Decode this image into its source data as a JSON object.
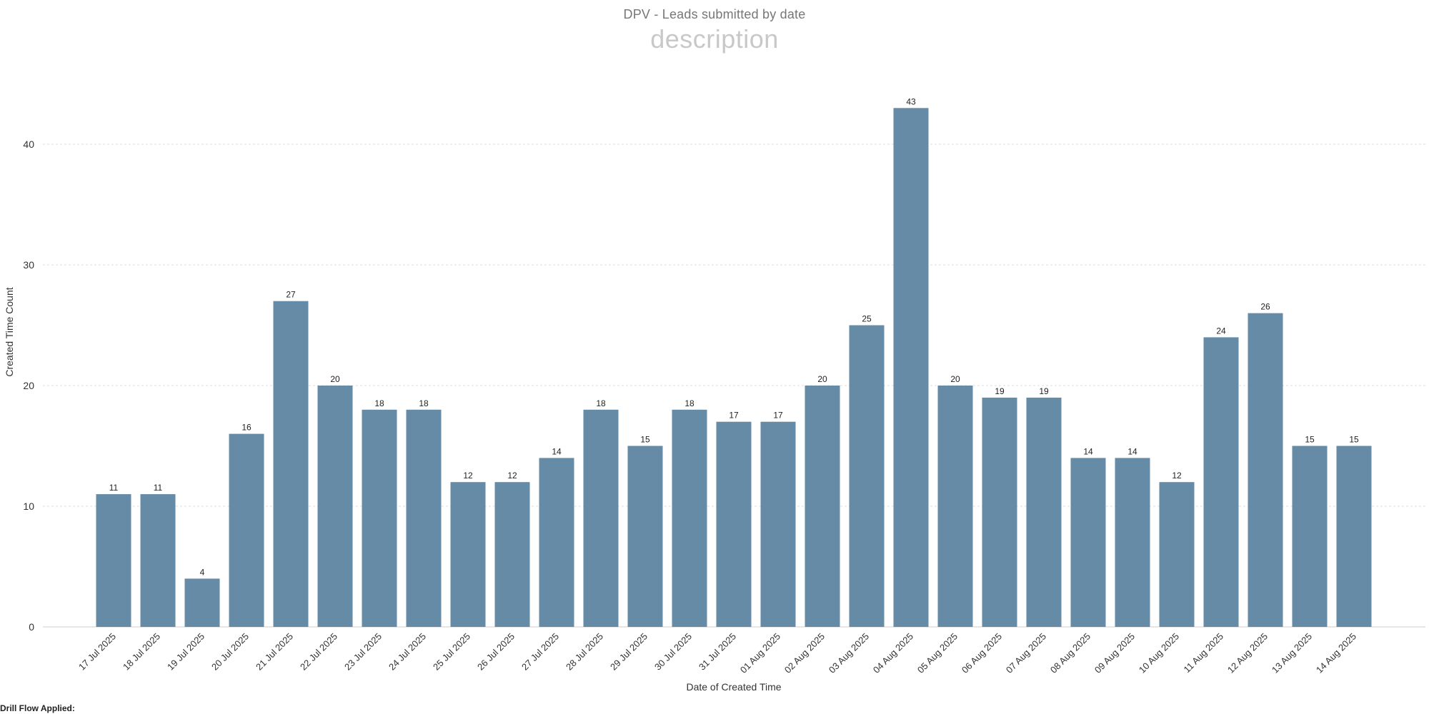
{
  "chart_data": {
    "type": "bar",
    "title": "DPV - Leads submitted by date",
    "subtitle": "description",
    "xlabel": "Date of Created Time",
    "ylabel": "Created Time Count",
    "ylim": [
      0,
      45
    ],
    "yticks": [
      0,
      10,
      20,
      30,
      40
    ],
    "grid": true,
    "bar_color": "#668ba6",
    "categories": [
      "17 Jul 2025",
      "18 Jul 2025",
      "19 Jul 2025",
      "20 Jul 2025",
      "21 Jul 2025",
      "22 Jul 2025",
      "23 Jul 2025",
      "24 Jul 2025",
      "25 Jul 2025",
      "26 Jul 2025",
      "27 Jul 2025",
      "28 Jul 2025",
      "29 Jul 2025",
      "30 Jul 2025",
      "31 Jul 2025",
      "01 Aug 2025",
      "02 Aug 2025",
      "03 Aug 2025",
      "04 Aug 2025",
      "05 Aug 2025",
      "06 Aug 2025",
      "07 Aug 2025",
      "08 Aug 2025",
      "09 Aug 2025",
      "10 Aug 2025",
      "11 Aug 2025",
      "12 Aug 2025",
      "13 Aug 2025",
      "14 Aug 2025"
    ],
    "values": [
      11,
      11,
      4,
      16,
      27,
      20,
      18,
      18,
      12,
      12,
      14,
      18,
      15,
      18,
      17,
      17,
      20,
      25,
      43,
      20,
      19,
      19,
      14,
      14,
      12,
      24,
      26,
      15,
      15
    ]
  },
  "footer": {
    "drill_flow_label": "Drill Flow Applied:"
  }
}
